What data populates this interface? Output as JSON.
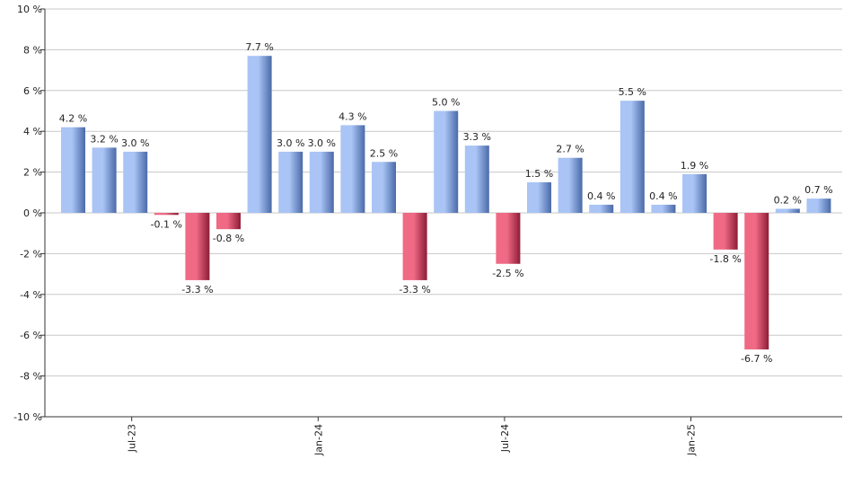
{
  "chart_data": {
    "type": "bar",
    "title": "",
    "xlabel": "",
    "ylabel": "",
    "unit_suffix": " %",
    "ylim": [
      -10,
      10
    ],
    "yticks": [
      -10,
      -8,
      -6,
      -4,
      -2,
      0,
      2,
      4,
      6,
      8,
      10
    ],
    "grid": true,
    "legend": "none",
    "values": [
      4.2,
      3.2,
      3.0,
      -0.1,
      -3.3,
      -0.8,
      7.7,
      3.0,
      3.0,
      4.3,
      2.5,
      -3.3,
      5.0,
      3.3,
      -2.5,
      1.5,
      2.7,
      0.4,
      5.5,
      0.4,
      1.9,
      -1.8,
      -6.7,
      0.2,
      0.7
    ],
    "value_labels": [
      "4.2 %",
      "3.2 %",
      "3.0 %",
      "-0.1 %",
      "-3.3 %",
      "-0.8 %",
      "7.7 %",
      "3.0 %",
      "3.0 %",
      "4.3 %",
      "2.5 %",
      "-3.3 %",
      "5.0 %",
      "3.3 %",
      "-2.5 %",
      "1.5 %",
      "2.7 %",
      "0.4 %",
      "5.5 %",
      "0.4 %",
      "1.9 %",
      "-1.8 %",
      "-6.7 %",
      "0.2 %",
      "0.7 %"
    ],
    "x_tick_labels": [
      {
        "index": 2,
        "label": "Jul-23"
      },
      {
        "index": 8,
        "label": "Jan-24"
      },
      {
        "index": 14,
        "label": "Jul-24"
      },
      {
        "index": 20,
        "label": "Jan-25"
      }
    ],
    "colors": {
      "positive_light": "#a9c4f5",
      "positive_dark": "#4a6aa8",
      "negative_light": "#f06a85",
      "negative_dark": "#8e1c36"
    }
  }
}
